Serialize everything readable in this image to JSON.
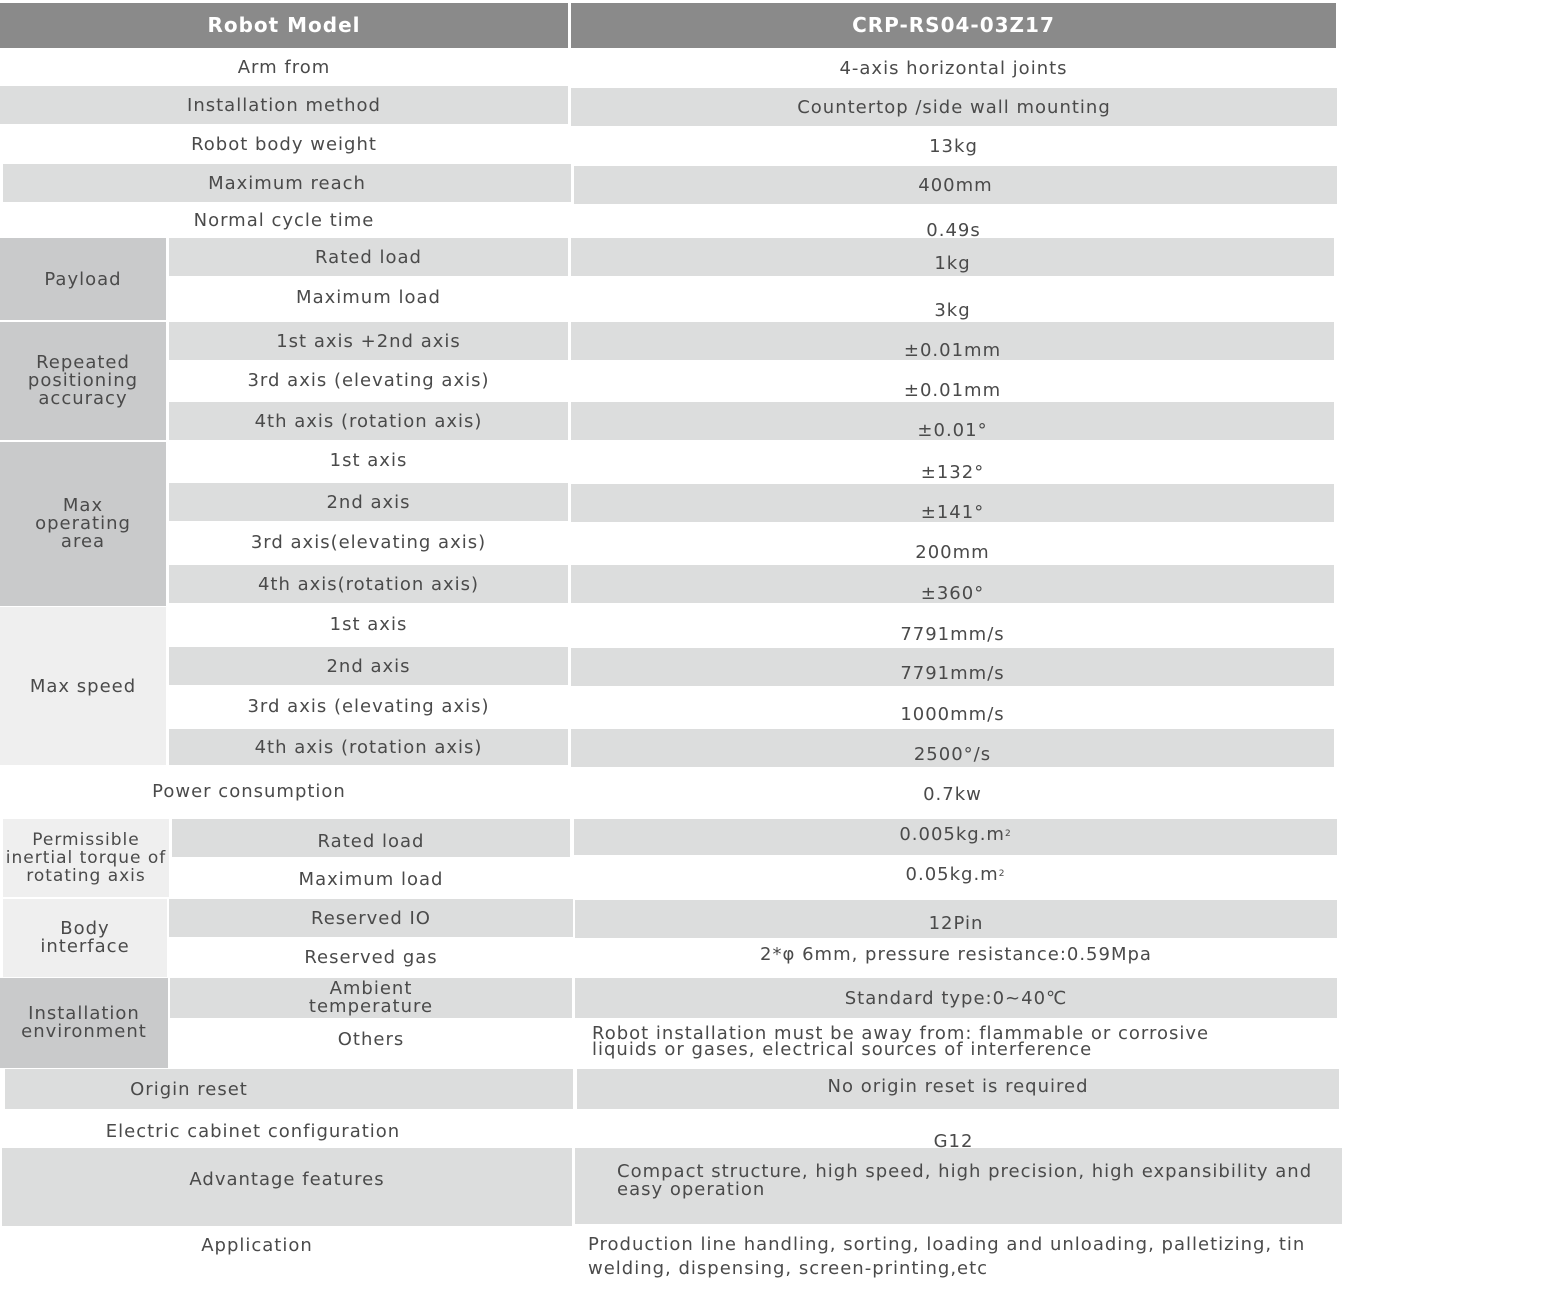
{
  "header": {
    "label": "Robot Model",
    "model": "CRP-RS04-03Z17"
  },
  "rows": {
    "arm_form": {
      "label": "Arm from",
      "value": "4-axis horizontal joints"
    },
    "installation_method": {
      "label": "Installation method",
      "value": "Countertop /side wall mounting"
    },
    "body_weight": {
      "label": "Robot body weight",
      "value": "13kg"
    },
    "max_reach": {
      "label": "Maximum reach",
      "value": "400mm"
    },
    "cycle_time": {
      "label": "Normal cycle time",
      "value": "0.49s"
    },
    "payload": {
      "group": "Payload",
      "sub": [
        {
          "label": "Rated load",
          "value": "1kg"
        },
        {
          "label": "Maximum load",
          "value": "3kg"
        }
      ]
    },
    "repeatability": {
      "group": "Repeated positioning accuracy",
      "sub": [
        {
          "label": "1st axis +2nd axis",
          "value": "±0.01mm"
        },
        {
          "label": "3rd axis (elevating axis)",
          "value": "±0.01mm"
        },
        {
          "label": "4th axis (rotation axis)",
          "value": "±0.01°"
        }
      ]
    },
    "operating_area": {
      "group": "Max operating area",
      "sub": [
        {
          "label": "1st axis",
          "value": "±132°"
        },
        {
          "label": "2nd axis",
          "value": "±141°"
        },
        {
          "label": "3rd axis(elevating axis)",
          "value": "200mm"
        },
        {
          "label": "4th axis(rotation axis)",
          "value": "±360°"
        }
      ]
    },
    "max_speed": {
      "group": "Max speed",
      "sub": [
        {
          "label": "1st axis",
          "value": "7791mm/s"
        },
        {
          "label": "2nd axis",
          "value": "7791mm/s"
        },
        {
          "label": "3rd axis (elevating axis)",
          "value": "1000mm/s"
        },
        {
          "label": "4th axis (rotation axis)",
          "value": "2500°/s"
        }
      ]
    },
    "power": {
      "label": "Power consumption",
      "value": "0.7kw"
    },
    "inertia": {
      "group": "Permissible inertial torque of rotating axis",
      "sub": [
        {
          "label": "Rated load",
          "value": "0.005kg.m",
          "sup": "2"
        },
        {
          "label": "Maximum load",
          "value": "0.05kg.m",
          "sup": "2"
        }
      ]
    },
    "body_interface": {
      "group": "Body interface",
      "sub": [
        {
          "label": "Reserved IO",
          "value": "12Pin"
        },
        {
          "label": "Reserved gas",
          "value": "2*φ 6mm, pressure resistance:0.59Mpa"
        }
      ]
    },
    "environment": {
      "group": "Installation environment",
      "sub": [
        {
          "label": "Ambient temperature",
          "value": "Standard type:0~40℃"
        },
        {
          "label": "Others",
          "value": "Robot installation must be away from: flammable or corrosive liquids or gases, electrical sources of interference"
        }
      ]
    },
    "origin_reset": {
      "label": "Origin reset",
      "value": "No origin reset is required"
    },
    "cabinet": {
      "label": "Electric cabinet configuration",
      "value": "G12"
    },
    "advantages": {
      "label": "Advantage features",
      "value": "Compact structure, high speed, high precision, high expansibility and easy operation"
    },
    "application": {
      "label": "Application",
      "value": "Production line handling, sorting, loading and unloading, palletizing, tin welding, dispensing, screen-printing,etc"
    }
  }
}
